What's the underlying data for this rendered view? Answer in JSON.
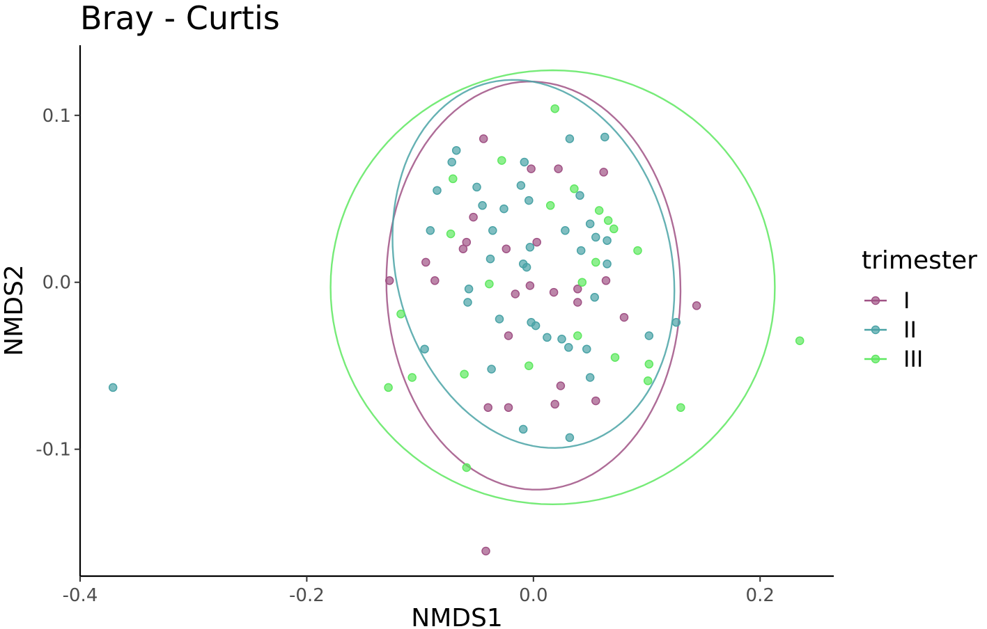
{
  "chart_data": {
    "type": "scatter",
    "title": "Bray - Curtis",
    "xlabel": "NMDS1",
    "ylabel": "NMDS2",
    "xlim": [
      -0.4,
      0.265
    ],
    "ylim": [
      -0.176,
      0.142
    ],
    "x_ticks": [
      -0.4,
      -0.2,
      0.0,
      0.2
    ],
    "x_tick_labels": [
      "-0.4",
      "-0.2",
      "0.0",
      "0.2"
    ],
    "y_ticks": [
      -0.1,
      0.0,
      0.1
    ],
    "y_tick_labels": [
      "-0.1",
      "0.0",
      "0.1"
    ],
    "grid": false,
    "legend": {
      "title": "trimester",
      "position": "right"
    },
    "series": [
      {
        "name": "I",
        "color": "#A05285",
        "points": [
          [
            -0.044,
            0.086
          ],
          [
            -0.002,
            0.068
          ],
          [
            0.022,
            0.068
          ],
          [
            0.062,
            0.066
          ],
          [
            -0.053,
            0.039
          ],
          [
            -0.059,
            0.024
          ],
          [
            -0.062,
            0.02
          ],
          [
            -0.024,
            0.02
          ],
          [
            0.003,
            0.024
          ],
          [
            -0.095,
            0.012
          ],
          [
            -0.127,
            0.001
          ],
          [
            -0.087,
            0.001
          ],
          [
            -0.003,
            -0.002
          ],
          [
            0.018,
            -0.006
          ],
          [
            0.039,
            -0.004
          ],
          [
            0.064,
            0.001
          ],
          [
            -0.016,
            -0.007
          ],
          [
            0.039,
            -0.012
          ],
          [
            0.08,
            -0.021
          ],
          [
            0.144,
            -0.014
          ],
          [
            -0.022,
            -0.032
          ],
          [
            0.024,
            -0.062
          ],
          [
            -0.04,
            -0.075
          ],
          [
            -0.022,
            -0.075
          ],
          [
            0.019,
            -0.073
          ],
          [
            0.055,
            -0.071
          ],
          [
            -0.042,
            -0.161
          ]
        ]
      },
      {
        "name": "II",
        "color": "#4AA3A6",
        "points": [
          [
            -0.068,
            0.079
          ],
          [
            -0.072,
            0.072
          ],
          [
            -0.008,
            0.072
          ],
          [
            0.032,
            0.086
          ],
          [
            0.063,
            0.087
          ],
          [
            -0.085,
            0.055
          ],
          [
            -0.05,
            0.057
          ],
          [
            -0.011,
            0.058
          ],
          [
            0.041,
            0.052
          ],
          [
            -0.045,
            0.046
          ],
          [
            -0.026,
            0.044
          ],
          [
            -0.004,
            0.049
          ],
          [
            -0.091,
            0.031
          ],
          [
            -0.036,
            0.031
          ],
          [
            0.028,
            0.031
          ],
          [
            0.05,
            0.035
          ],
          [
            0.055,
            0.027
          ],
          [
            0.065,
            0.025
          ],
          [
            -0.003,
            0.021
          ],
          [
            0.042,
            0.019
          ],
          [
            -0.038,
            0.014
          ],
          [
            -0.009,
            0.011
          ],
          [
            -0.006,
            0.009
          ],
          [
            0.065,
            0.011
          ],
          [
            -0.057,
            -0.004
          ],
          [
            -0.058,
            -0.012
          ],
          [
            0.054,
            -0.009
          ],
          [
            -0.03,
            -0.022
          ],
          [
            -0.002,
            -0.024
          ],
          [
            0.002,
            -0.026
          ],
          [
            0.012,
            -0.033
          ],
          [
            0.025,
            -0.034
          ],
          [
            0.031,
            -0.039
          ],
          [
            0.047,
            -0.04
          ],
          [
            0.102,
            -0.032
          ],
          [
            0.126,
            -0.024
          ],
          [
            -0.096,
            -0.04
          ],
          [
            -0.037,
            -0.052
          ],
          [
            0.05,
            -0.057
          ],
          [
            -0.009,
            -0.088
          ],
          [
            0.032,
            -0.093
          ],
          [
            -0.371,
            -0.063
          ]
        ]
      },
      {
        "name": "III",
        "color": "#5EE860",
        "points": [
          [
            0.019,
            0.104
          ],
          [
            -0.028,
            0.073
          ],
          [
            -0.071,
            0.062
          ],
          [
            0.036,
            0.056
          ],
          [
            0.015,
            0.046
          ],
          [
            0.058,
            0.043
          ],
          [
            0.066,
            0.037
          ],
          [
            0.071,
            0.032
          ],
          [
            -0.073,
            0.029
          ],
          [
            0.092,
            0.019
          ],
          [
            0.055,
            0.012
          ],
          [
            0.043,
            0.0
          ],
          [
            -0.039,
            -0.001
          ],
          [
            -0.117,
            -0.019
          ],
          [
            0.039,
            -0.032
          ],
          [
            0.072,
            -0.045
          ],
          [
            -0.004,
            -0.05
          ],
          [
            0.102,
            -0.049
          ],
          [
            -0.107,
            -0.057
          ],
          [
            -0.061,
            -0.055
          ],
          [
            0.101,
            -0.059
          ],
          [
            -0.128,
            -0.063
          ],
          [
            0.13,
            -0.075
          ],
          [
            0.235,
            -0.035
          ],
          [
            -0.059,
            -0.111
          ]
        ]
      }
    ],
    "ellipses": [
      {
        "series": "I",
        "cx": 0.0,
        "cy": -0.002,
        "rx": 0.13,
        "ry": 0.122,
        "angle": -10
      },
      {
        "series": "II",
        "cx": 0.0,
        "cy": 0.011,
        "rx": 0.128,
        "ry": 0.106,
        "angle": -25
      },
      {
        "series": "III",
        "cx": 0.017,
        "cy": -0.003,
        "rx": 0.196,
        "ry": 0.13,
        "angle": 0
      }
    ]
  }
}
